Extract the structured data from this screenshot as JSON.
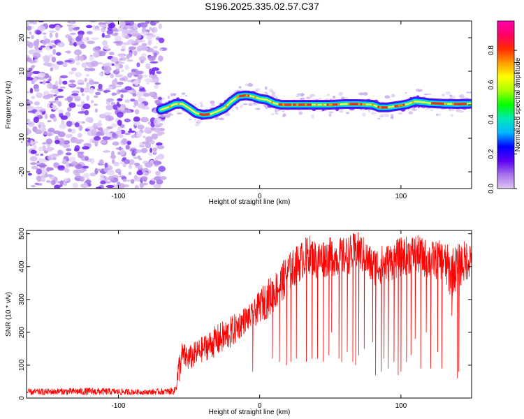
{
  "title": "S196.2025.335.02.57.C37",
  "chart_data": [
    {
      "type": "heatmap",
      "name": "spectrogram",
      "xlabel": "Height of straight line (km)",
      "ylabel": "Frequency (Hz)",
      "xlim": [
        -165,
        150
      ],
      "ylim": [
        -25,
        25
      ],
      "x_ticks": [
        -100,
        0,
        100
      ],
      "y_ticks": [
        -20,
        -10,
        0,
        10,
        20
      ],
      "noise_region_x": [
        -165,
        -68
      ],
      "signal_ridge": {
        "x": [
          -70,
          -65,
          -60,
          -55,
          -50,
          -45,
          -40,
          -35,
          -30,
          -25,
          -20,
          -15,
          -10,
          -5,
          0,
          5,
          10,
          15,
          20,
          30,
          40,
          50,
          60,
          70,
          80,
          85,
          90,
          95,
          100,
          105,
          110,
          115,
          120,
          130,
          140,
          150
        ],
        "freq_hz": [
          -1.5,
          -0.8,
          0.2,
          0.3,
          -1,
          -2.5,
          -3,
          -2.8,
          -2,
          -1,
          1,
          2.5,
          2.8,
          2.5,
          1.8,
          1.5,
          0.5,
          0,
          0,
          0,
          0,
          0,
          0.2,
          0.2,
          0,
          -0.8,
          -0.8,
          -0.5,
          -0.2,
          0.2,
          1,
          0.8,
          0.5,
          0.3,
          0.2,
          0.3
        ]
      },
      "colorbar": {
        "label": "Normalized spectral amplitude",
        "ticks": [
          0.0,
          0.2,
          0.4,
          0.6,
          0.8
        ],
        "tick_labels": [
          "0.0",
          "0.2",
          "0.4",
          "0.6",
          "0.8"
        ],
        "range": [
          0,
          0.97
        ],
        "colors": [
          "#ddc8f2",
          "#a770ec",
          "#5b00f2",
          "#0000ff",
          "#00b8ff",
          "#00e8b8",
          "#00ff00",
          "#a8ff00",
          "#ffff00",
          "#ff9c00",
          "#ff2a00",
          "#ff0066",
          "#ff00aa"
        ]
      }
    },
    {
      "type": "line",
      "name": "snr",
      "xlabel": "Height of straight line (km)",
      "ylabel": "SNR (10 * v/v)",
      "xlim": [
        -165,
        150
      ],
      "ylim": [
        0,
        510
      ],
      "x_ticks": [
        -100,
        0,
        100
      ],
      "y_ticks": [
        0,
        100,
        200,
        300,
        400,
        500
      ],
      "color": "#ff0000",
      "envelope": {
        "x": [
          -165,
          -140,
          -120,
          -100,
          -80,
          -65,
          -60,
          -57,
          -55,
          -50,
          -40,
          -30,
          -20,
          -10,
          -5,
          0,
          5,
          10,
          15,
          20,
          25,
          30,
          35,
          40,
          50,
          60,
          70,
          80,
          90,
          100,
          110,
          120,
          130,
          135,
          140,
          150
        ],
        "mean": [
          18,
          20,
          20,
          19,
          18,
          20,
          22,
          90,
          130,
          120,
          150,
          175,
          200,
          240,
          250,
          280,
          300,
          320,
          350,
          380,
          400,
          420,
          440,
          420,
          430,
          430,
          450,
          400,
          410,
          430,
          440,
          420,
          420,
          380,
          400,
          430
        ],
        "spread": [
          10,
          10,
          12,
          10,
          8,
          10,
          12,
          50,
          40,
          40,
          40,
          50,
          50,
          40,
          40,
          50,
          60,
          60,
          60,
          60,
          60,
          60,
          60,
          60,
          60,
          60,
          60,
          60,
          60,
          60,
          60,
          60,
          60,
          80,
          70,
          60
        ]
      },
      "dropouts": {
        "x": [
          -5,
          9,
          14,
          17,
          19,
          22,
          26,
          33,
          37,
          41,
          45,
          49,
          51,
          56,
          58,
          62,
          66,
          68,
          70,
          74,
          80,
          82,
          86,
          88,
          91,
          95,
          98,
          100,
          104,
          107,
          110,
          114,
          118,
          121,
          126,
          129,
          136,
          140,
          141
        ],
        "min": [
          80,
          120,
          110,
          300,
          100,
          110,
          120,
          110,
          120,
          120,
          110,
          130,
          200,
          120,
          110,
          140,
          110,
          100,
          130,
          150,
          170,
          70,
          80,
          120,
          90,
          110,
          70,
          80,
          110,
          130,
          180,
          90,
          200,
          90,
          140,
          90,
          250,
          60,
          80
        ]
      }
    }
  ]
}
